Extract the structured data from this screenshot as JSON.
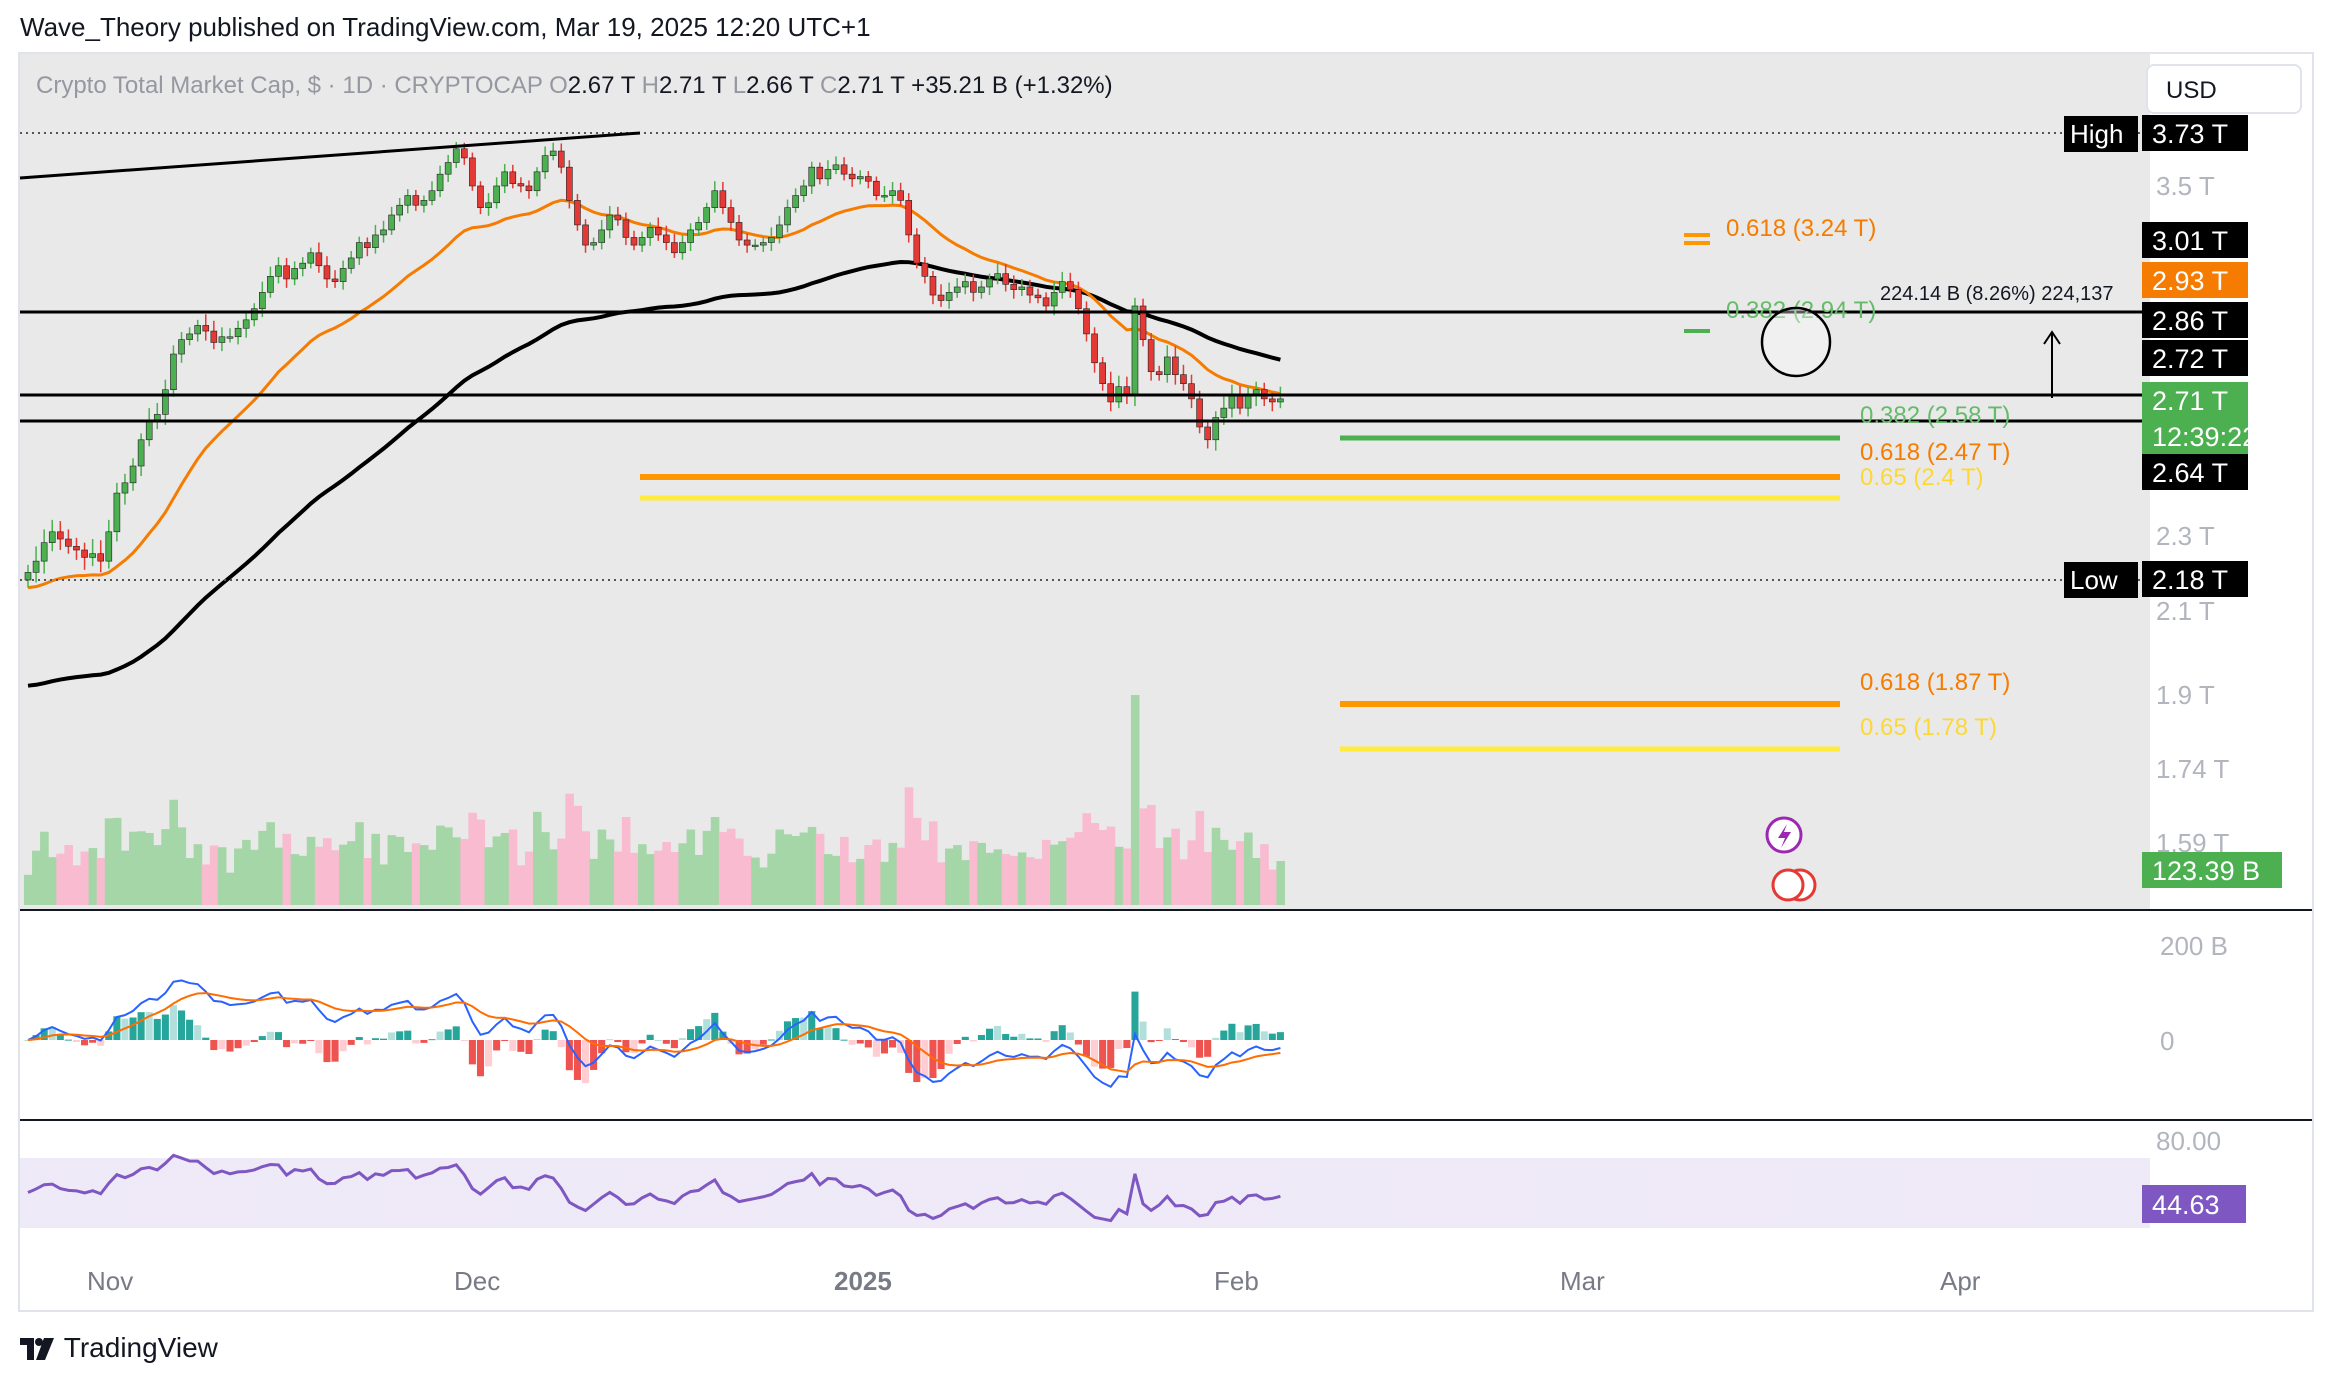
{
  "header": {
    "publisher_text": "Wave_Theory published on TradingView.com, Mar 19, 2025 12:20 UTC+1"
  },
  "legend": {
    "symbol": "Crypto Total Market Cap, $ · 1D · CRYPTOCAP",
    "o_label": "O",
    "o_value": "2.67 T",
    "h_label": "H",
    "h_value": "2.71 T",
    "l_label": "L",
    "l_value": "2.66 T",
    "c_label": "C",
    "c_value": "2.71 T",
    "change": "+35.21 B (+1.32%)"
  },
  "currency_button": {
    "label": "USD"
  },
  "brand": {
    "label": "TradingView",
    "logo": "tradingview-logo"
  },
  "colors": {
    "up": "#26a69a",
    "down": "#ef5350",
    "candle_up": "#4caf50",
    "candle_down": "#e53935",
    "ema50": "#f57c00",
    "ema200": "#000000",
    "fib_green": "#4caf50",
    "fib_orange": "#ff9800",
    "fib_yellow": "#ffeb3b",
    "macd": "#2962ff",
    "signal": "#ff6d00",
    "rsi": "#7e57c2",
    "volume_up": "#a5d6a7",
    "volume_down": "#f8bbd0"
  },
  "chart_data": {
    "type": "candlestick",
    "title": "Crypto Total Market Cap, $ · 1D · CRYPTOCAP",
    "x_ticks": [
      "Nov",
      "Dec",
      "2025",
      "Feb",
      "Mar",
      "Apr"
    ],
    "y_ticks": [
      "3.5 T",
      "2.3 T",
      "2.1 T",
      "1.9 T",
      "1.74 T",
      "1.59 T"
    ],
    "price_scale_labels": [
      {
        "label": "High",
        "value": "3.73 T",
        "style": "dark"
      },
      {
        "value": "3.01 T",
        "style": "dark"
      },
      {
        "value": "2.93 T",
        "style": "orange"
      },
      {
        "value": "2.86 T",
        "style": "dark"
      },
      {
        "value": "2.72 T",
        "style": "dark"
      },
      {
        "value": "2.71 T",
        "sub": "12:39:22",
        "style": "green"
      },
      {
        "value": "2.64 T",
        "style": "dark"
      },
      {
        "label": "Low",
        "value": "2.18 T",
        "style": "dark"
      },
      {
        "value": "123.39 B",
        "style": "green"
      }
    ],
    "fib_levels": [
      {
        "text": "0.618 (3.24 T)",
        "color": "orange"
      },
      {
        "text": "0.382 (2.94 T)",
        "color": "green"
      },
      {
        "text": "0.382 (2.58 T)",
        "color": "green"
      },
      {
        "text": "0.618 (2.47 T)",
        "color": "orange"
      },
      {
        "text": "0.65 (2.4 T)",
        "color": "yellow"
      },
      {
        "text": "0.618 (1.87 T)",
        "color": "orange"
      },
      {
        "text": "0.65 (1.78 T)",
        "color": "yellow"
      }
    ],
    "measure_label": "224.14 B (8.26%) 224,137",
    "macd_axis": [
      "200 B",
      "0"
    ],
    "rsi_axis": [
      "80.00"
    ],
    "rsi_value": "44.63",
    "closes": [
      2.2,
      2.23,
      2.28,
      2.31,
      2.29,
      2.27,
      2.26,
      2.24,
      2.25,
      2.23,
      2.31,
      2.42,
      2.45,
      2.5,
      2.58,
      2.64,
      2.66,
      2.74,
      2.86,
      2.91,
      2.93,
      2.96,
      2.94,
      2.9,
      2.92,
      2.92,
      2.95,
      2.98,
      3.02,
      3.08,
      3.14,
      3.18,
      3.13,
      3.17,
      3.19,
      3.23,
      3.18,
      3.13,
      3.12,
      3.17,
      3.21,
      3.27,
      3.25,
      3.3,
      3.32,
      3.38,
      3.42,
      3.46,
      3.42,
      3.44,
      3.48,
      3.55,
      3.6,
      3.66,
      3.62,
      3.5,
      3.41,
      3.43,
      3.5,
      3.56,
      3.51,
      3.5,
      3.48,
      3.56,
      3.63,
      3.65,
      3.58,
      3.44,
      3.34,
      3.26,
      3.27,
      3.32,
      3.38,
      3.36,
      3.29,
      3.26,
      3.29,
      3.33,
      3.3,
      3.27,
      3.23,
      3.27,
      3.32,
      3.35,
      3.41,
      3.48,
      3.41,
      3.35,
      3.28,
      3.26,
      3.26,
      3.27,
      3.29,
      3.34,
      3.41,
      3.46,
      3.5,
      3.58,
      3.53,
      3.57,
      3.59,
      3.55,
      3.53,
      3.54,
      3.52,
      3.46,
      3.46,
      3.48,
      3.44,
      3.3,
      3.19,
      3.14,
      3.07,
      3.05,
      3.08,
      3.1,
      3.12,
      3.08,
      3.1,
      3.13,
      3.15,
      3.11,
      3.09,
      3.1,
      3.07,
      3.06,
      3.03,
      3.08,
      3.12,
      3.09,
      3.02,
      2.93,
      2.83,
      2.76,
      2.7,
      2.75,
      2.72,
      3.03,
      2.91,
      2.8,
      2.79,
      2.85,
      2.79,
      2.76,
      2.71,
      2.62,
      2.58,
      2.65,
      2.68,
      2.72,
      2.68,
      2.72,
      2.74,
      2.71,
      2.7,
      2.71
    ]
  }
}
